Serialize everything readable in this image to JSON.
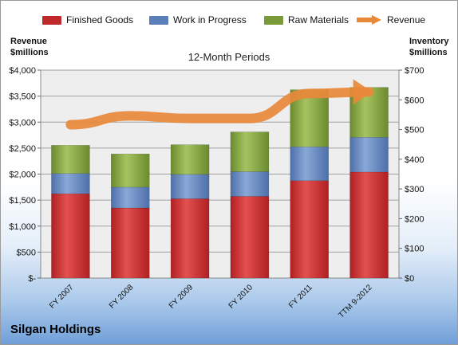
{
  "chart_data": {
    "type": "bar",
    "subtitle": "12-Month Periods",
    "company": "Silgan Holdings",
    "left_axis_title_line1": "Revenue",
    "left_axis_title_line2": "$millions",
    "right_axis_title_line1": "Inventory",
    "right_axis_title_line2": "$millions",
    "categories": [
      "FY 2007",
      "FY 2008",
      "FY 2009",
      "FY 2010",
      "FY 2011",
      "TTM 9-2012"
    ],
    "left_axis": {
      "ylim": [
        0,
        4000
      ],
      "ticks": [
        "$-",
        "$500",
        "$1,000",
        "$1,500",
        "$2,000",
        "$2,500",
        "$3,000",
        "$3,500",
        "$4,000"
      ]
    },
    "right_axis": {
      "ylim": [
        0,
        700
      ],
      "ticks": [
        "$0",
        "$100",
        "$200",
        "$300",
        "$400",
        "$500",
        "$600",
        "$700"
      ]
    },
    "legend": [
      "Finished Goods",
      "Work in Progress",
      "Raw Materials",
      "Revenue"
    ],
    "series": [
      {
        "name": "Finished Goods",
        "axis": "right",
        "color": "#c0292b",
        "values": [
          284,
          236,
          267,
          275,
          328,
          357
        ]
      },
      {
        "name": "Work in Progress",
        "axis": "right",
        "color": "#5b7fb8",
        "values": [
          68,
          70,
          82,
          83,
          114,
          117
        ]
      },
      {
        "name": "Raw Materials",
        "axis": "right",
        "color": "#7a9a3a",
        "values": [
          95,
          112,
          100,
          134,
          192,
          168
        ]
      },
      {
        "name": "Revenue",
        "axis": "left",
        "color": "#e8893a",
        "values": [
          2950,
          3120,
          3070,
          3070,
          3550,
          3580
        ]
      }
    ]
  }
}
